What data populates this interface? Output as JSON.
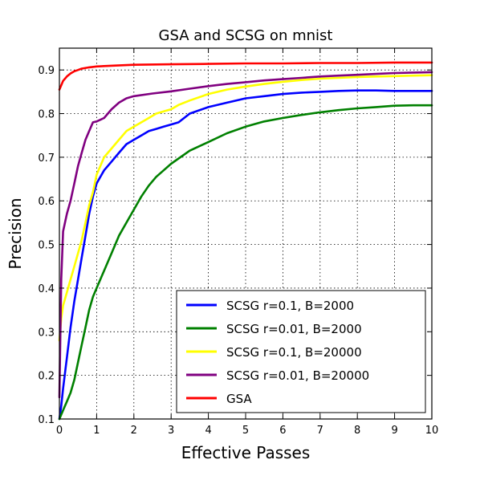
{
  "chart_data": {
    "type": "line",
    "title": "GSA and SCSG on mnist",
    "xlabel": "Effective Passes",
    "ylabel": "Precision",
    "xlim": [
      0,
      10
    ],
    "ylim": [
      0.1,
      0.95
    ],
    "xticks": [
      "0",
      "1",
      "2",
      "3",
      "4",
      "5",
      "6",
      "7",
      "8",
      "9",
      "10"
    ],
    "yticks": [
      "0.1",
      "0.2",
      "0.3",
      "0.4",
      "0.5",
      "0.6",
      "0.7",
      "0.8",
      "0.9"
    ],
    "grid": true,
    "legend_position": "bottom-right",
    "series": [
      {
        "name": "SCSG r=0.1, B=2000",
        "color": "#0000ff",
        "x": [
          0,
          0.05,
          0.1,
          0.2,
          0.3,
          0.4,
          0.5,
          0.6,
          0.7,
          0.8,
          0.9,
          1.0,
          1.2,
          1.4,
          1.6,
          1.8,
          2.0,
          2.2,
          2.4,
          2.6,
          2.8,
          3.0,
          3.2,
          3.5,
          4.0,
          4.5,
          5.0,
          5.5,
          6.0,
          6.5,
          7.0,
          7.5,
          8.0,
          8.5,
          9.0,
          9.5,
          10.0
        ],
        "y": [
          0.1,
          0.13,
          0.17,
          0.24,
          0.31,
          0.37,
          0.42,
          0.47,
          0.52,
          0.57,
          0.61,
          0.64,
          0.67,
          0.69,
          0.71,
          0.73,
          0.74,
          0.75,
          0.76,
          0.765,
          0.77,
          0.775,
          0.78,
          0.8,
          0.815,
          0.825,
          0.835,
          0.84,
          0.845,
          0.848,
          0.85,
          0.852,
          0.853,
          0.853,
          0.852,
          0.852,
          0.852
        ]
      },
      {
        "name": "SCSG r=0.01, B=2000",
        "color": "#008000",
        "x": [
          0,
          0.1,
          0.2,
          0.3,
          0.4,
          0.5,
          0.6,
          0.7,
          0.8,
          0.9,
          1.0,
          1.2,
          1.4,
          1.6,
          1.8,
          2.0,
          2.2,
          2.4,
          2.6,
          2.8,
          3.0,
          3.5,
          4.0,
          4.5,
          5.0,
          5.5,
          6.0,
          6.5,
          7.0,
          7.5,
          8.0,
          8.5,
          9.0,
          9.5,
          10.0
        ],
        "y": [
          0.1,
          0.12,
          0.14,
          0.16,
          0.19,
          0.23,
          0.27,
          0.31,
          0.35,
          0.38,
          0.4,
          0.44,
          0.48,
          0.52,
          0.55,
          0.58,
          0.61,
          0.635,
          0.655,
          0.67,
          0.685,
          0.715,
          0.735,
          0.755,
          0.77,
          0.782,
          0.79,
          0.797,
          0.803,
          0.808,
          0.812,
          0.815,
          0.818,
          0.819,
          0.819
        ]
      },
      {
        "name": "SCSG r=0.1, B=20000",
        "color": "#ffff00",
        "x": [
          0,
          0.05,
          0.1,
          0.2,
          0.3,
          0.4,
          0.5,
          0.6,
          0.7,
          0.8,
          0.9,
          1.0,
          1.2,
          1.4,
          1.6,
          1.8,
          2.0,
          2.2,
          2.4,
          2.6,
          2.8,
          3.0,
          3.2,
          3.5,
          4.0,
          4.5,
          5.0,
          5.5,
          6.0,
          6.5,
          7.0,
          7.5,
          8.0,
          8.5,
          9.0,
          9.5,
          10.0
        ],
        "y": [
          0.28,
          0.33,
          0.36,
          0.39,
          0.42,
          0.45,
          0.48,
          0.51,
          0.55,
          0.59,
          0.62,
          0.66,
          0.7,
          0.72,
          0.74,
          0.76,
          0.77,
          0.78,
          0.79,
          0.8,
          0.805,
          0.81,
          0.82,
          0.83,
          0.845,
          0.855,
          0.862,
          0.868,
          0.873,
          0.877,
          0.88,
          0.882,
          0.884,
          0.885,
          0.886,
          0.887,
          0.888
        ]
      },
      {
        "name": "SCSG r=0.01, B=20000",
        "color": "#800080",
        "x": [
          0,
          0.05,
          0.1,
          0.2,
          0.3,
          0.4,
          0.5,
          0.6,
          0.7,
          0.8,
          0.9,
          1.0,
          1.2,
          1.4,
          1.6,
          1.8,
          2.0,
          2.5,
          3.0,
          3.5,
          4.0,
          4.5,
          5.0,
          5.5,
          6.0,
          6.5,
          7.0,
          7.5,
          8.0,
          8.5,
          9.0,
          9.5,
          10.0
        ],
        "y": [
          0.15,
          0.42,
          0.53,
          0.57,
          0.6,
          0.64,
          0.68,
          0.71,
          0.74,
          0.76,
          0.78,
          0.782,
          0.79,
          0.81,
          0.825,
          0.835,
          0.84,
          0.846,
          0.851,
          0.857,
          0.863,
          0.868,
          0.872,
          0.876,
          0.879,
          0.882,
          0.885,
          0.887,
          0.889,
          0.891,
          0.893,
          0.894,
          0.895
        ]
      },
      {
        "name": "GSA",
        "color": "#ff0000",
        "x": [
          0,
          0.05,
          0.1,
          0.2,
          0.3,
          0.4,
          0.5,
          0.6,
          0.8,
          1.0,
          1.5,
          2.0,
          3.0,
          4.0,
          5.0,
          6.0,
          7.0,
          8.0,
          9.0,
          10.0
        ],
        "y": [
          0.855,
          0.865,
          0.875,
          0.885,
          0.892,
          0.897,
          0.9,
          0.903,
          0.906,
          0.908,
          0.91,
          0.912,
          0.913,
          0.914,
          0.915,
          0.915,
          0.916,
          0.916,
          0.917,
          0.917
        ]
      }
    ]
  }
}
